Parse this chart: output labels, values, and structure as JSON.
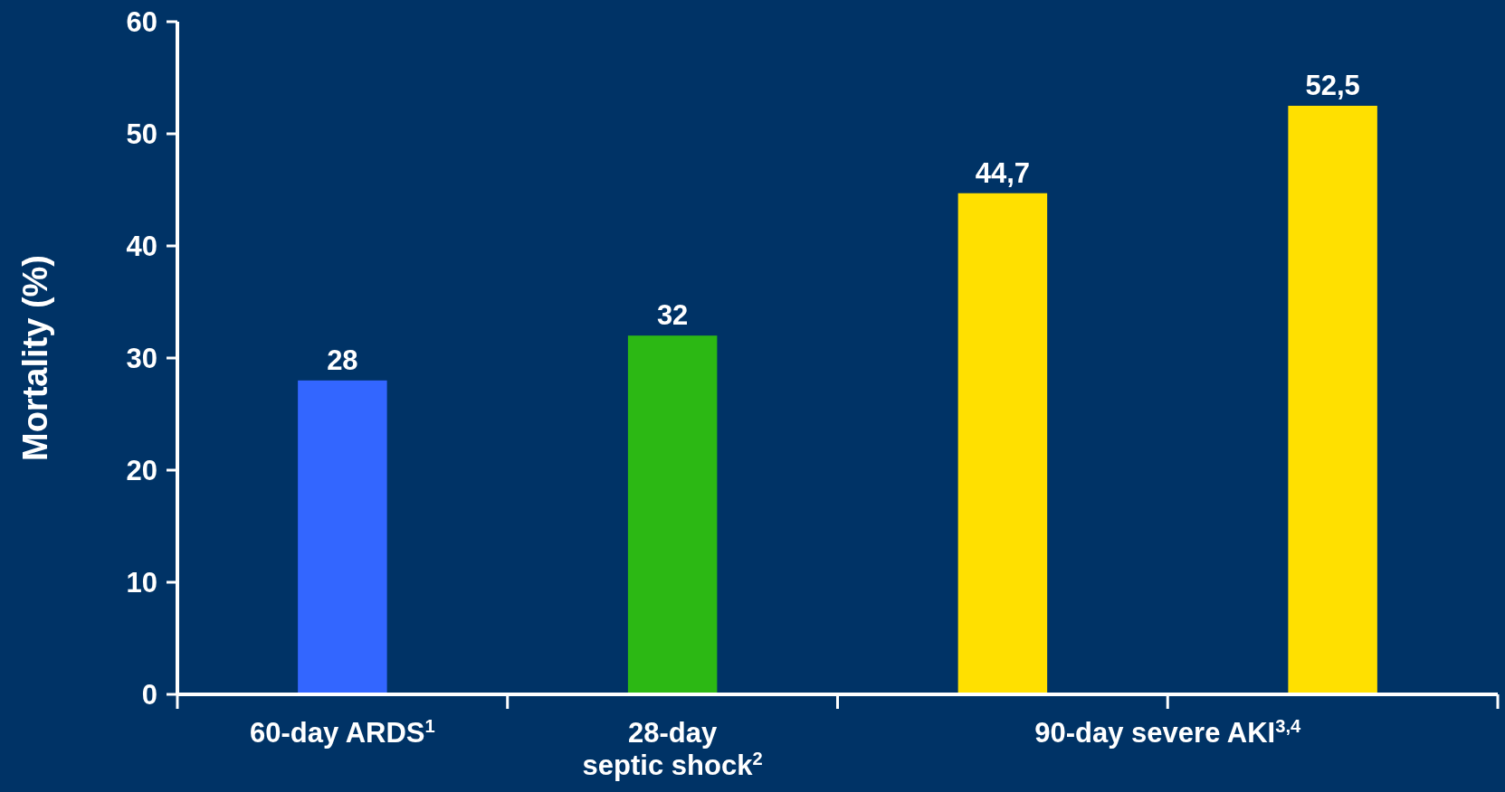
{
  "chart_data": {
    "type": "bar",
    "ylabel": "Mortality (%)",
    "categories": [
      "60-day ARDS$^{1}$",
      "28-day\nseptic shock$^{2}$",
      "90-day severe AKI$^{3,4}$",
      null
    ],
    "values": [
      28,
      32,
      44.7,
      52.5
    ],
    "colors": [
      "#3366ff",
      "#2cb814",
      "#ffe000",
      "#ffe000"
    ],
    "value_labels": [
      "28",
      "32",
      "44,7",
      "52,5"
    ],
    "ylim": [
      0,
      60
    ],
    "yticks": [
      0,
      10,
      20,
      30,
      40,
      50,
      60
    ]
  }
}
